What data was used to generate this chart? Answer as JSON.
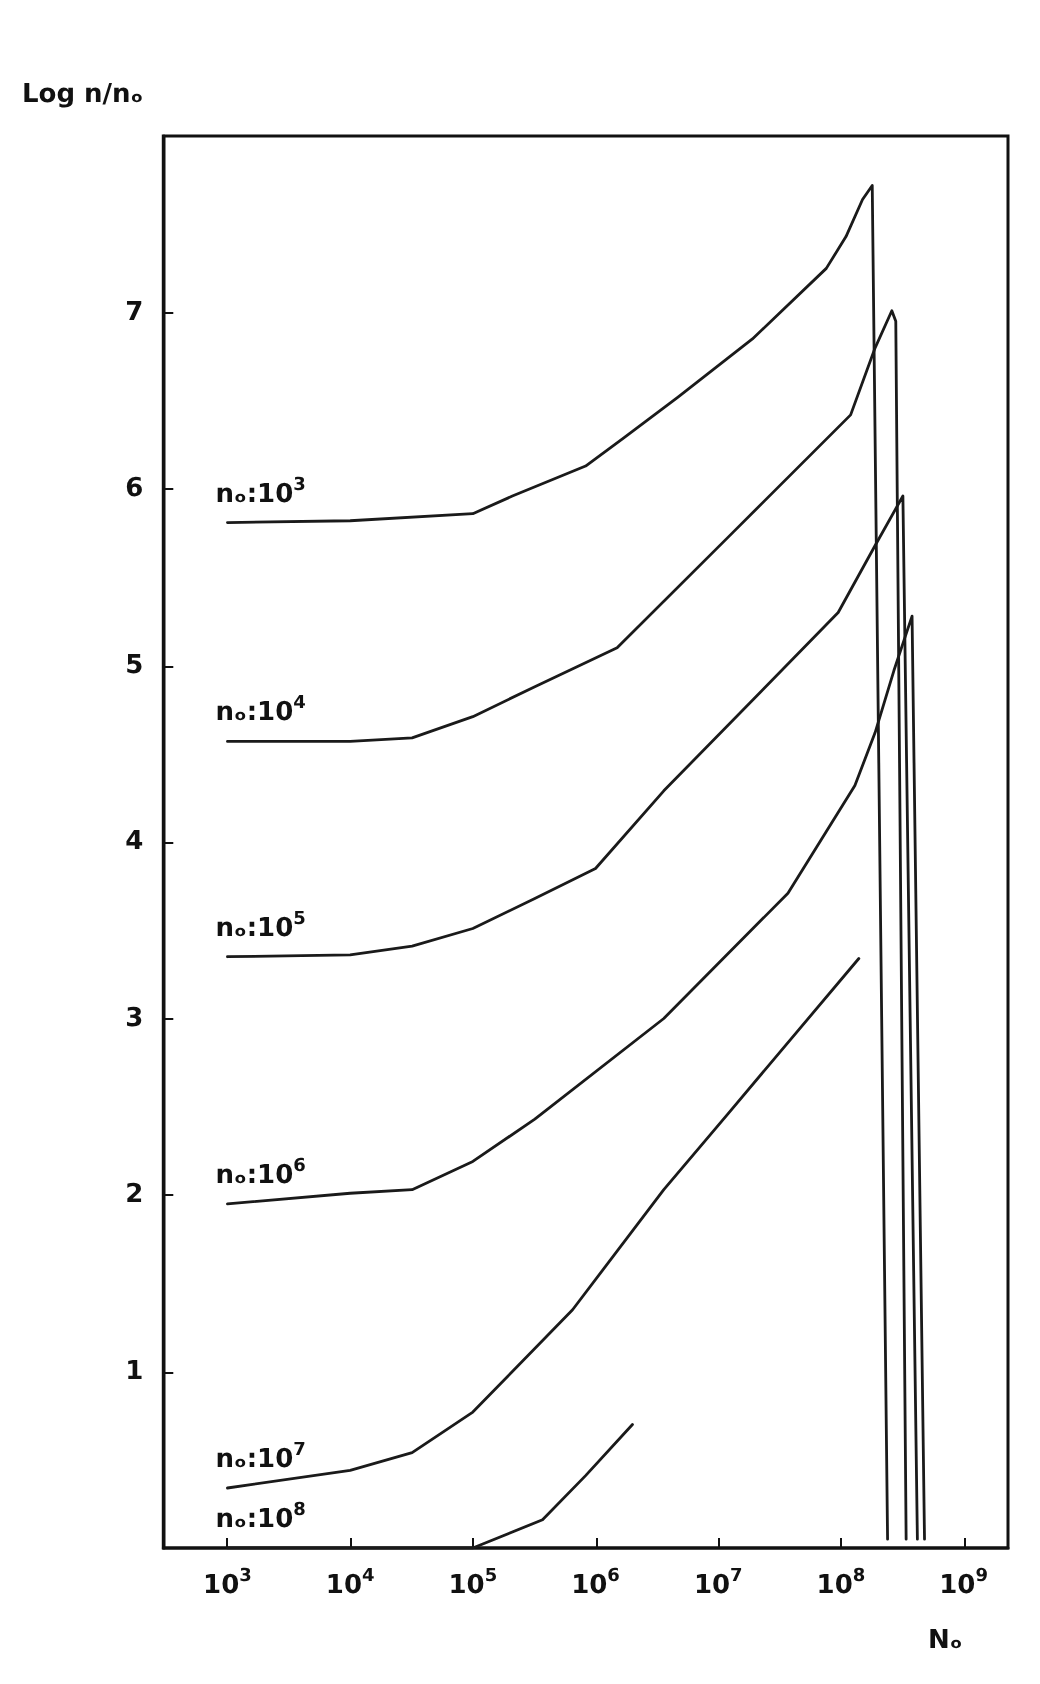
{
  "chart_data": {
    "type": "line",
    "xlabel": "Nₒ",
    "ylabel": "Log n/nₒ",
    "log": "x",
    "xlim": [
      300,
      2300000000
    ],
    "ylim": [
      0,
      8
    ],
    "xticks": [
      {
        "value": 1000,
        "label": "10$^{3}$"
      },
      {
        "value": 10000,
        "label": "10$^{4}$"
      },
      {
        "value": 100000,
        "label": "10$^{5}$"
      },
      {
        "value": 1000000,
        "label": "10$^{6}$"
      },
      {
        "value": 10000000,
        "label": "10$^{7}$"
      },
      {
        "value": 100000000,
        "label": "10$^{8}$"
      },
      {
        "value": 1000000000,
        "label": "10$^{9}$"
      }
    ],
    "yticks": [
      1,
      2,
      3,
      4,
      5,
      6,
      7
    ],
    "grid": false,
    "legend": false,
    "marker": "none",
    "line_style": "solid",
    "series": [
      {
        "name": "nₒ:10$^{3}$",
        "color": "#1a1a1a",
        "x": [
          1000,
          10000,
          100000,
          210000,
          830000,
          1700000,
          4700000,
          19000000,
          76000000,
          110000000,
          150000000,
          180000000,
          240000000
        ],
        "values": [
          5.81,
          5.82,
          5.86,
          5.96,
          6.13,
          6.29,
          6.52,
          6.85,
          7.25,
          7.43,
          7.64,
          7.72,
          0.05
        ]
      },
      {
        "name": "nₒ:10$^{4}$",
        "color": "#1a1a1a",
        "x": [
          1000,
          10000,
          32000,
          100000,
          320000,
          1500000,
          13000000,
          120000000,
          190000000,
          260000000,
          280000000,
          340000000
        ],
        "values": [
          4.57,
          4.57,
          4.59,
          4.71,
          4.88,
          5.1,
          5.75,
          6.42,
          6.8,
          7.01,
          6.95,
          0.05
        ]
      },
      {
        "name": "nₒ:10$^{5}$",
        "color": "#1a1a1a",
        "x": [
          1000,
          10000,
          32000,
          100000,
          320000,
          1000000,
          3600000,
          95000000,
          190000000,
          320000000,
          420000000
        ],
        "values": [
          3.35,
          3.36,
          3.41,
          3.51,
          3.68,
          3.85,
          4.29,
          5.3,
          5.68,
          5.96,
          0.05
        ]
      },
      {
        "name": "nₒ:10$^{6}$",
        "color": "#1a1a1a",
        "x": [
          1000,
          10000,
          32000,
          100000,
          320000,
          3600000,
          37000000,
          130000000,
          190000000,
          270000000,
          380000000,
          480000000
        ],
        "values": [
          1.95,
          2.01,
          2.03,
          2.19,
          2.43,
          3.0,
          3.71,
          4.32,
          4.62,
          4.97,
          5.28,
          0.05
        ]
      },
      {
        "name": "nₒ:10$^{7}$",
        "color": "#1a1a1a",
        "x": [
          1000,
          10000,
          32000,
          100000,
          650000,
          3600000,
          12000000,
          140000000
        ],
        "values": [
          0.34,
          0.44,
          0.54,
          0.77,
          1.35,
          2.03,
          2.46,
          3.34
        ]
      },
      {
        "name": "nₒ:10$^{8}$",
        "color": "#1a1a1a",
        "x": [
          1000,
          10000,
          100000,
          370000,
          830000,
          2000000
        ],
        "values": [
          0,
          0,
          0,
          0.16,
          0.41,
          0.7
        ]
      }
    ]
  }
}
